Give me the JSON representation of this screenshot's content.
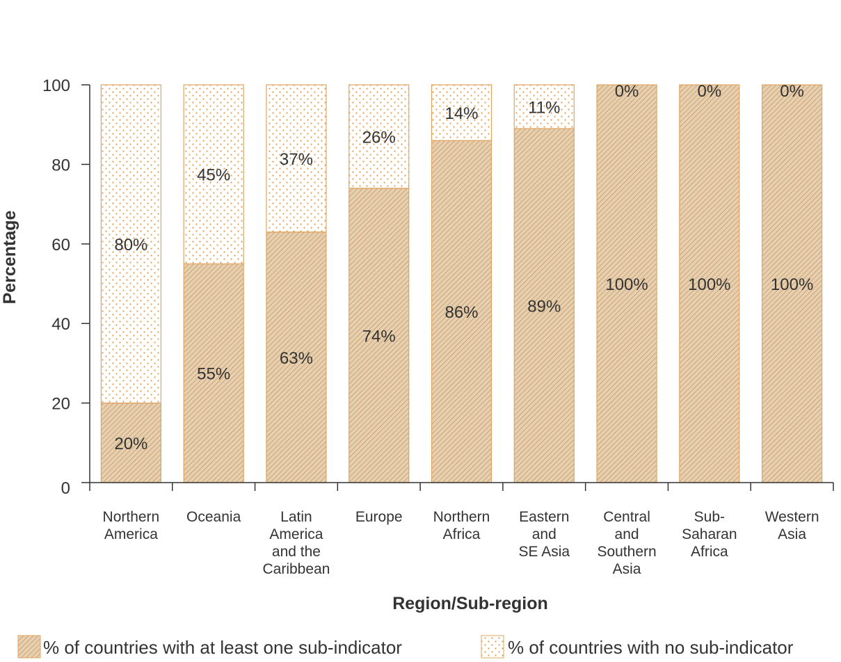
{
  "chart_data": {
    "type": "bar",
    "stacked": true,
    "categories": [
      [
        "Northern",
        "America"
      ],
      [
        "Oceania"
      ],
      [
        "Latin",
        "America",
        "and the",
        "Caribbean"
      ],
      [
        "Europe"
      ],
      [
        "Northern",
        "Africa"
      ],
      [
        "Eastern",
        "and",
        "SE Asia"
      ],
      [
        "Central",
        "and",
        "Southern",
        "Asia"
      ],
      [
        "Sub-",
        "Saharan",
        "Africa"
      ],
      [
        "Western",
        "Asia"
      ]
    ],
    "series": [
      {
        "name": "% of countries with at least one sub-indicator",
        "values": [
          20,
          55,
          63,
          74,
          86,
          89,
          100,
          100,
          100
        ],
        "labels": [
          "20%",
          "55%",
          "63%",
          "74%",
          "86%",
          "89%",
          "100%",
          "100%",
          "100%"
        ]
      },
      {
        "name": "% of countries with no sub-indicator",
        "values": [
          80,
          45,
          37,
          26,
          14,
          11,
          0,
          0,
          0
        ],
        "labels": [
          "80%",
          "45%",
          "37%",
          "26%",
          "14%",
          "11%",
          "0%",
          "0%",
          "0%"
        ]
      }
    ],
    "xlabel": "Region/Sub-region",
    "ylabel": "Percentage",
    "ylim": [
      0,
      100
    ],
    "yticks": [
      0,
      20,
      40,
      60,
      80,
      100
    ],
    "grid": false,
    "legend_position": "bottom",
    "colors": {
      "hatch_fill": "#e8cfae",
      "hatch_line": "#b08a5e",
      "edge": "#e0a45e",
      "dots": "#e39a48",
      "axis": "#333333"
    }
  }
}
